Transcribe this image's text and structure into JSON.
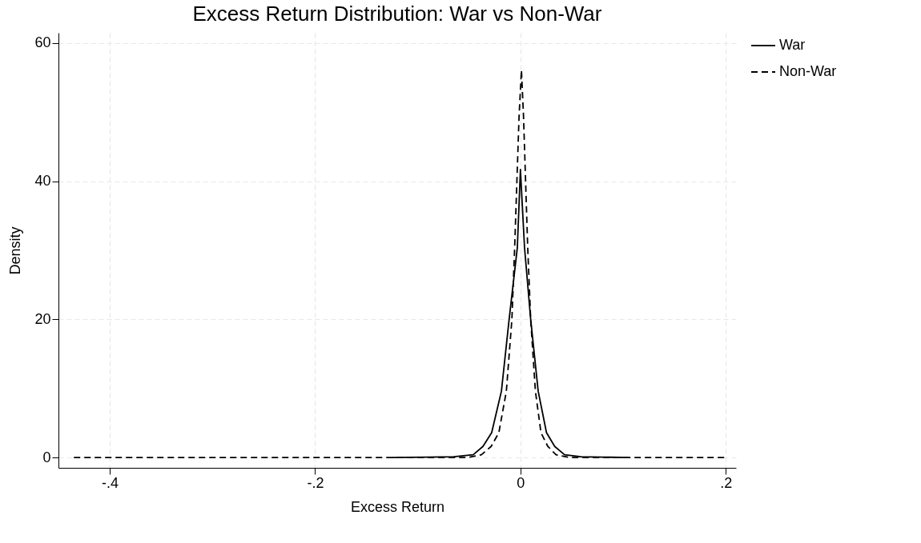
{
  "chart_data": {
    "type": "line",
    "title": "Excess Return Distribution: War vs Non-War",
    "xlabel": "Excess Return",
    "ylabel": "Density",
    "xlim": [
      -0.45,
      0.21
    ],
    "xticks": [
      {
        "value": -0.4,
        "label": "-.4"
      },
      {
        "value": -0.2,
        "label": "-.2"
      },
      0,
      {
        "value": 0.2,
        "label": ".2"
      }
    ],
    "ylim": [
      -1.5,
      61.5
    ],
    "yticks": [
      0,
      20,
      40,
      60
    ],
    "grid": true,
    "legend": "right",
    "series": [
      {
        "name": "War",
        "color": "#000000",
        "line_style": "solid",
        "x": [
          -0.125,
          -0.09,
          -0.065,
          -0.046,
          -0.0365,
          -0.028,
          -0.0185,
          -0.011,
          -0.003,
          0,
          0.004,
          0.01,
          0.0173,
          0.0254,
          0.0334,
          0.043,
          0.059,
          0.08,
          0.106
        ],
        "values": [
          0,
          0.05,
          0.1,
          0.4,
          1.6,
          3.6,
          9.6,
          20,
          30.4,
          41.7,
          30.4,
          20,
          9.6,
          3.6,
          1.6,
          0.4,
          0.1,
          0.05,
          0
        ]
      },
      {
        "name": "Non-War",
        "color": "#000000",
        "line_style": "dashed",
        "x": [
          -0.435,
          -0.2,
          -0.1,
          -0.051,
          -0.038,
          -0.0285,
          -0.021,
          -0.0137,
          -0.0083,
          -0.0056,
          -0.0013,
          0.001,
          0.003,
          0.0071,
          0.01,
          0.0146,
          0.02,
          0.0267,
          0.0347,
          0.048,
          0.1,
          0.2
        ],
        "values": [
          0,
          0,
          0,
          0,
          0.4,
          1.6,
          3.6,
          9.6,
          20,
          30.4,
          49.5,
          56.1,
          49.5,
          30.4,
          20,
          9.6,
          3.6,
          1.6,
          0.4,
          0,
          0,
          0
        ]
      }
    ]
  }
}
